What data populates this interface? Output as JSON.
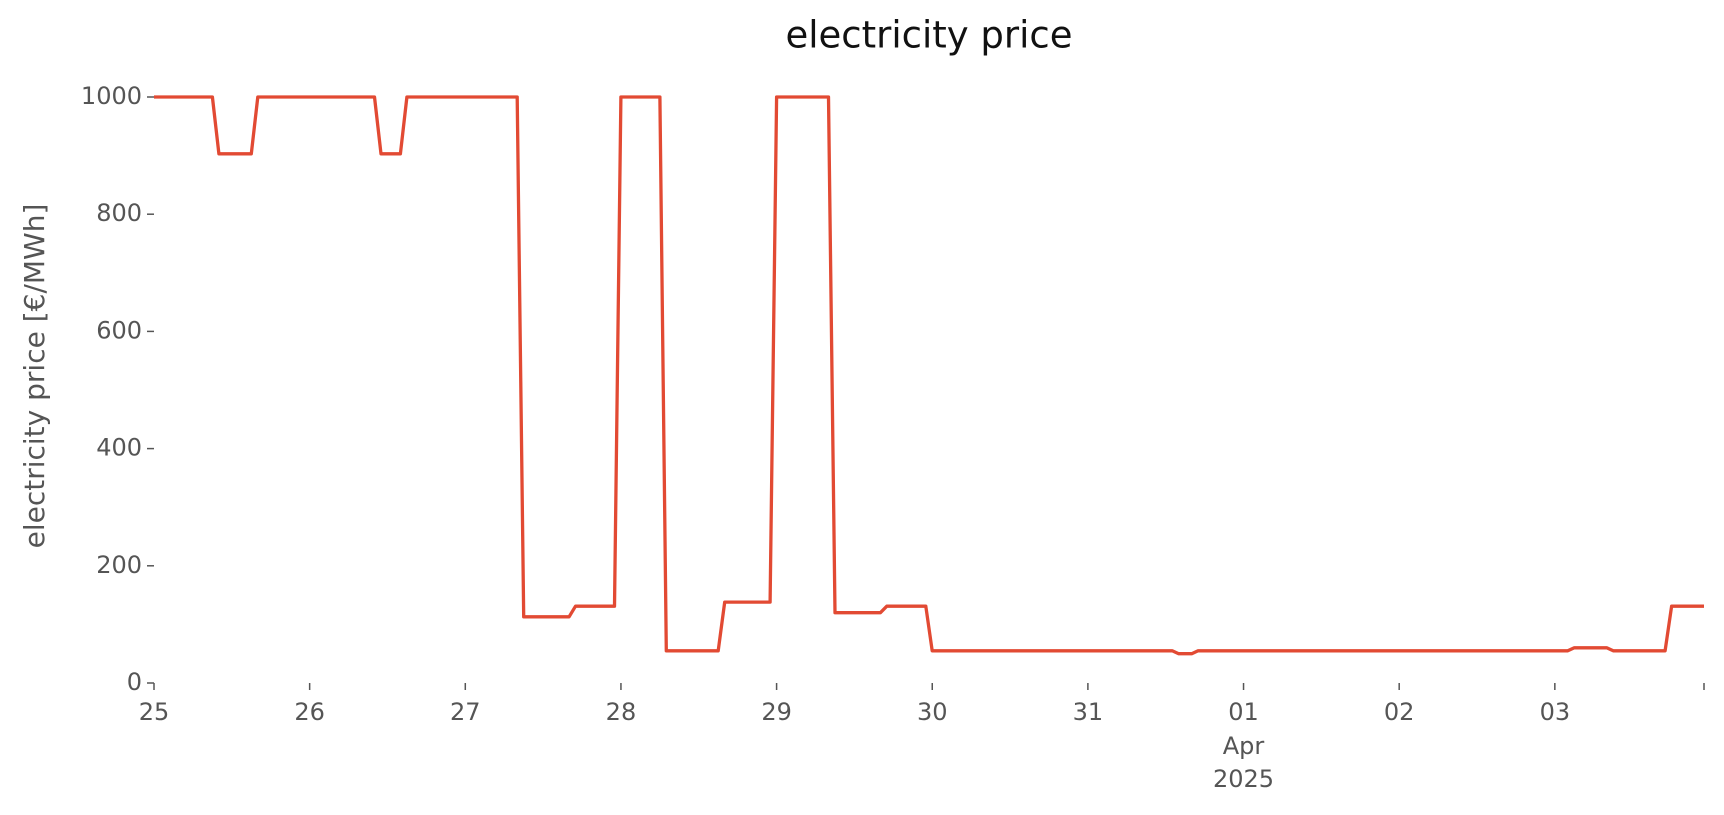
{
  "chart_data": {
    "type": "line",
    "title": "electricity price",
    "y_label": "electricity price [€/MWh]",
    "x": [
      "2025-03-25T00:00",
      "2025-03-25T09:00",
      "2025-03-25T10:00",
      "2025-03-25T15:00",
      "2025-03-25T16:00",
      "2025-03-26T10:00",
      "2025-03-26T11:00",
      "2025-03-26T14:00",
      "2025-03-26T15:00",
      "2025-03-27T08:00",
      "2025-03-27T09:00",
      "2025-03-27T16:00",
      "2025-03-27T17:00",
      "2025-03-27T23:00",
      "2025-03-28T00:00",
      "2025-03-28T06:00",
      "2025-03-28T07:00",
      "2025-03-28T15:00",
      "2025-03-28T16:00",
      "2025-03-28T23:00",
      "2025-03-29T00:00",
      "2025-03-29T08:00",
      "2025-03-29T09:00",
      "2025-03-29T16:00",
      "2025-03-29T17:00",
      "2025-03-29T23:00",
      "2025-03-30T00:00",
      "2025-03-31T13:00",
      "2025-03-31T14:00",
      "2025-03-31T16:00",
      "2025-03-31T17:00",
      "2025-04-03T02:00",
      "2025-04-03T03:00",
      "2025-04-03T08:00",
      "2025-04-03T09:00",
      "2025-04-03T17:00",
      "2025-04-03T18:00",
      "2025-04-03T23:00"
    ],
    "series": [
      {
        "name": "electricity price",
        "color": "#e24a33",
        "values": [
          1000,
          1000,
          903,
          903,
          1000,
          1000,
          903,
          903,
          1000,
          1000,
          113,
          113,
          131,
          131,
          1000,
          1000,
          55,
          55,
          138,
          138,
          1000,
          1000,
          120,
          120,
          131,
          131,
          55,
          55,
          50,
          50,
          55,
          55,
          60,
          60,
          55,
          55,
          131,
          131
        ]
      }
    ],
    "xlim": [
      "2025-03-25T00:00",
      "2025-04-03T23:00"
    ],
    "xticks": [
      {
        "value": "2025-03-25",
        "label": "25"
      },
      {
        "value": "2025-03-26",
        "label": "26"
      },
      {
        "value": "2025-03-27",
        "label": "27"
      },
      {
        "value": "2025-03-28",
        "label": "28"
      },
      {
        "value": "2025-03-29",
        "label": "29"
      },
      {
        "value": "2025-03-30",
        "label": "30"
      },
      {
        "value": "2025-03-31",
        "label": "31"
      },
      {
        "value": "2025-04-01",
        "label": "01"
      },
      {
        "value": "2025-04-02",
        "label": "02"
      },
      {
        "value": "2025-04-03",
        "label": "03"
      }
    ],
    "xtick_sublabels": [
      "Apr",
      "2025"
    ],
    "ylim": [
      0,
      1000
    ],
    "yticks": [
      0,
      200,
      400,
      600,
      800,
      1000
    ],
    "grid": false
  }
}
